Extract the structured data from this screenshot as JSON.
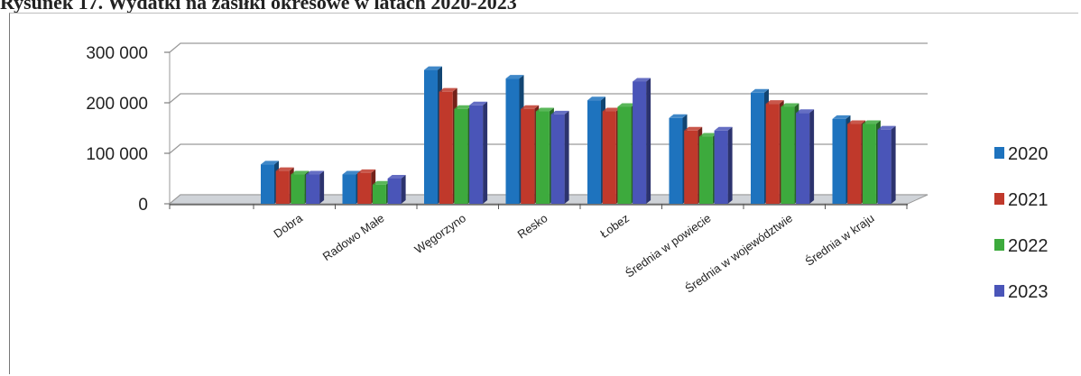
{
  "title": "Rysunek 17. Wydatki na zasiłki okresowe w latach 2020-2023",
  "chart_data": {
    "type": "bar",
    "title": "",
    "xlabel": "",
    "ylabel": "",
    "ylim": [
      0,
      300000
    ],
    "yticks": [
      {
        "value": 0,
        "label": "0"
      },
      {
        "value": 100000,
        "label": "100 000"
      },
      {
        "value": 200000,
        "label": "200 000"
      },
      {
        "value": 300000,
        "label": "300 000"
      }
    ],
    "grid": true,
    "legend_position": "right",
    "categories": [
      "Dobra",
      "Radowo Małe",
      "Węgorzyno",
      "Resko",
      "Łobez",
      "Średnia w powiecie",
      "Średnia w województwie",
      "Średnia w kraju"
    ],
    "series": [
      {
        "name": "2020",
        "color": "#1e73be",
        "values": [
          78000,
          58000,
          265000,
          248000,
          205000,
          170000,
          220000,
          168000
        ]
      },
      {
        "name": "2021",
        "color": "#c0392b",
        "values": [
          65000,
          61000,
          222000,
          188000,
          183000,
          145000,
          198000,
          158000
        ]
      },
      {
        "name": "2022",
        "color": "#3daa3d",
        "values": [
          58000,
          38000,
          188000,
          183000,
          192000,
          133000,
          192000,
          158000
        ]
      },
      {
        "name": "2023",
        "color": "#4a55b8",
        "values": [
          58000,
          50000,
          195000,
          177000,
          242000,
          145000,
          180000,
          147000
        ]
      }
    ]
  }
}
